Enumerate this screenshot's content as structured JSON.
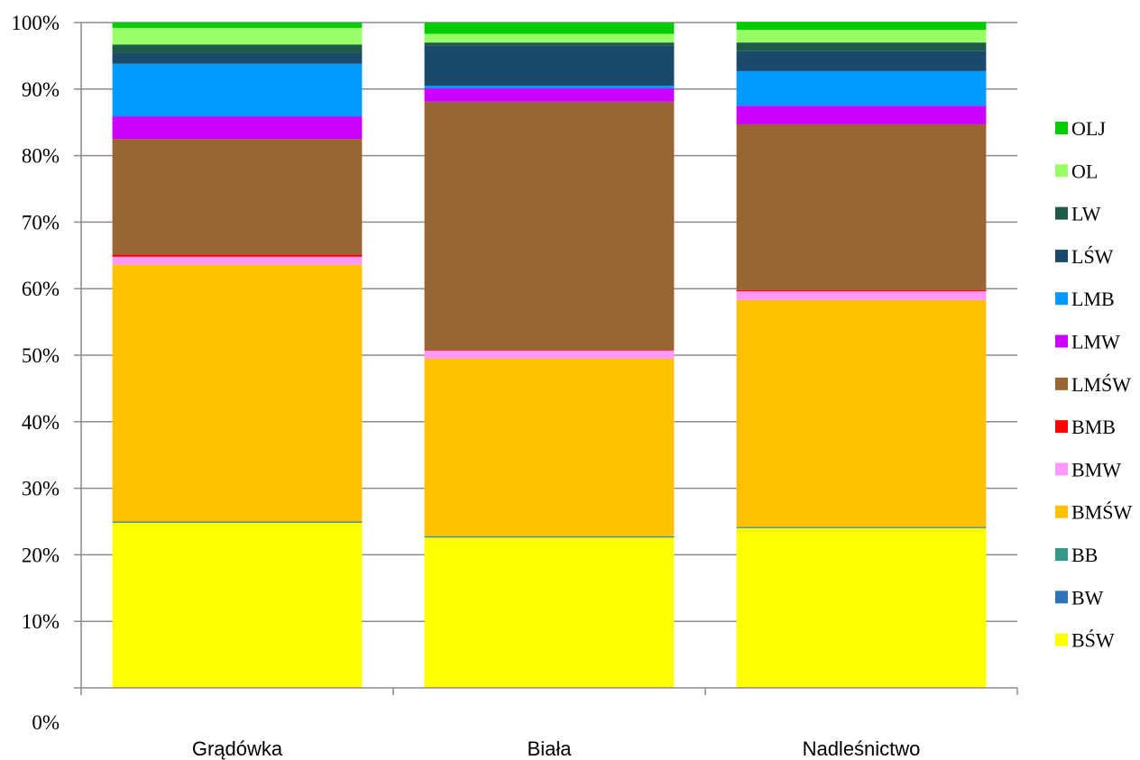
{
  "chart_data": {
    "type": "bar",
    "stacked": true,
    "percent": true,
    "categories": [
      "Grądówka",
      "Biała",
      "Nadleśnictwo"
    ],
    "ylim": [
      0,
      100
    ],
    "yticks": [
      "0%",
      "10%",
      "20%",
      "30%",
      "40%",
      "50%",
      "60%",
      "70%",
      "80%",
      "90%",
      "100%"
    ],
    "grid": true,
    "legend_position": "right",
    "series": [
      {
        "name": "BŚW",
        "color": "#ffff00",
        "values": [
          24.8,
          22.6,
          24.0
        ]
      },
      {
        "name": "BW",
        "color": "#2e75b6",
        "values": [
          0.1,
          0.1,
          0.1
        ]
      },
      {
        "name": "BB",
        "color": "#339988",
        "values": [
          0.1,
          0.1,
          0.1
        ]
      },
      {
        "name": "BMŚW",
        "color": "#ffc000",
        "values": [
          38.6,
          26.7,
          34.1
        ]
      },
      {
        "name": "BMW",
        "color": "#ff99ff",
        "values": [
          1.2,
          1.2,
          1.3
        ]
      },
      {
        "name": "BMB",
        "color": "#ff0000",
        "values": [
          0.3,
          0.1,
          0.2
        ]
      },
      {
        "name": "LMŚW",
        "color": "#996633",
        "values": [
          17.4,
          37.3,
          24.9
        ]
      },
      {
        "name": "LMW",
        "color": "#cc00ff",
        "values": [
          3.4,
          2.0,
          2.8
        ]
      },
      {
        "name": "LMB",
        "color": "#0099ff",
        "values": [
          7.9,
          0.4,
          5.2
        ]
      },
      {
        "name": "LŚW",
        "color": "#1a4a6b",
        "values": [
          1.6,
          6.0,
          3.0
        ]
      },
      {
        "name": "LW",
        "color": "#1d5a4a",
        "values": [
          1.3,
          0.5,
          1.3
        ]
      },
      {
        "name": "OL",
        "color": "#99ff66",
        "values": [
          2.5,
          1.3,
          1.9
        ]
      },
      {
        "name": "OLJ",
        "color": "#00cc00",
        "values": [
          0.8,
          1.7,
          1.2
        ]
      }
    ]
  }
}
